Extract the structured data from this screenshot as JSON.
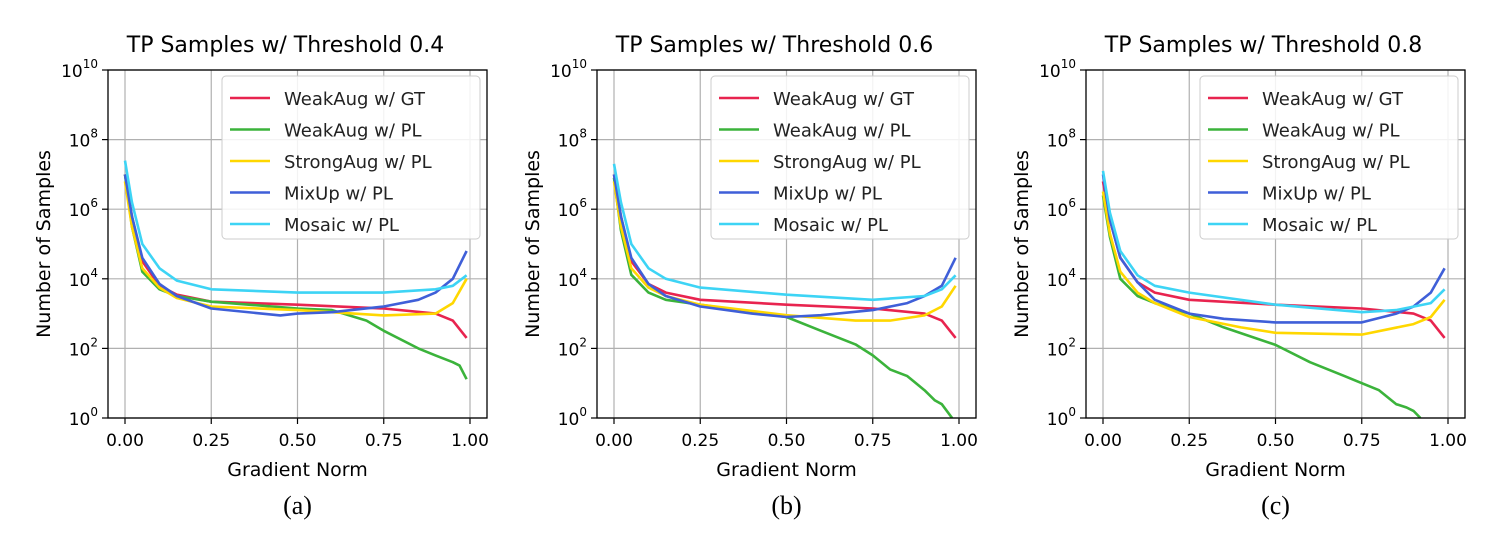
{
  "chart_data": [
    {
      "type": "line",
      "caption": "(a)",
      "title": "TP Samples w/ Threshold 0.4",
      "xlabel": "Gradient Norm",
      "ylabel": "Number of Samples",
      "xlim": [
        0,
        1
      ],
      "ylim": [
        1,
        10000000000.0
      ],
      "yscale": "log",
      "xticks": [
        "0.00",
        "0.25",
        "0.50",
        "0.75",
        "1.00"
      ],
      "yticks_exp": [
        "0",
        "2",
        "4",
        "6",
        "8",
        "10"
      ],
      "grid": true,
      "legend_placement": "top-right",
      "series": [
        {
          "name": "WeakAug w/ GT",
          "color": "#e8244f",
          "x": [
            0,
            0.02,
            0.05,
            0.1,
            0.15,
            0.25,
            0.5,
            0.75,
            0.9,
            0.95,
            0.99
          ],
          "y": [
            10000000.0,
            630000.0,
            32000.0,
            6300.0,
            3500.0,
            2200.0,
            1800.0,
            1400.0,
            1000.0,
            630.0,
            200.0
          ]
        },
        {
          "name": "WeakAug w/ PL",
          "color": "#3bb33b",
          "x": [
            0,
            0.02,
            0.05,
            0.1,
            0.15,
            0.25,
            0.5,
            0.6,
            0.7,
            0.75,
            0.85,
            0.9,
            0.95,
            0.97,
            0.99
          ],
          "y": [
            10000000.0,
            320000.0,
            16000.0,
            5000.0,
            3200.0,
            2200.0,
            1400.0,
            1260.0,
            630.0,
            320.0,
            100.0,
            63.0,
            40.0,
            32.0,
            13.0
          ]
        },
        {
          "name": "StrongAug w/ PL",
          "color": "#ffd700",
          "x": [
            0,
            0.02,
            0.05,
            0.1,
            0.15,
            0.25,
            0.5,
            0.75,
            0.9,
            0.95,
            0.99
          ],
          "y": [
            6300000.0,
            320000.0,
            20000.0,
            5600.0,
            2800.0,
            1600.0,
            1260.0,
            890.0,
            1000.0,
            2000.0,
            10000.0
          ]
        },
        {
          "name": "MixUp w/ PL",
          "color": "#3f5fd8",
          "x": [
            0,
            0.02,
            0.05,
            0.1,
            0.15,
            0.25,
            0.45,
            0.5,
            0.6,
            0.75,
            0.85,
            0.9,
            0.95,
            0.99
          ],
          "y": [
            10000000.0,
            630000.0,
            40000.0,
            7100.0,
            3200.0,
            1400.0,
            890.0,
            1000.0,
            1100.0,
            1600.0,
            2500.0,
            4000.0,
            10000.0,
            63000.0
          ]
        },
        {
          "name": "Mosaic w/ PL",
          "color": "#3dd4f5",
          "x": [
            0,
            0.02,
            0.05,
            0.1,
            0.15,
            0.25,
            0.5,
            0.75,
            0.9,
            0.95,
            0.99
          ],
          "y": [
            25000000.0,
            1600000.0,
            100000.0,
            20000.0,
            8900.0,
            5000.0,
            4000.0,
            4000.0,
            5000.0,
            6300.0,
            12600.0
          ]
        }
      ]
    },
    {
      "type": "line",
      "caption": "(b)",
      "title": "TP Samples w/ Threshold 0.6",
      "xlabel": "Gradient Norm",
      "ylabel": "Number of Samples",
      "xlim": [
        0,
        1
      ],
      "ylim": [
        1,
        10000000000.0
      ],
      "yscale": "log",
      "xticks": [
        "0.00",
        "0.25",
        "0.50",
        "0.75",
        "1.00"
      ],
      "yticks_exp": [
        "0",
        "2",
        "4",
        "6",
        "8",
        "10"
      ],
      "grid": true,
      "legend_placement": "top-right",
      "series": [
        {
          "name": "WeakAug w/ GT",
          "color": "#e8244f",
          "x": [
            0,
            0.02,
            0.05,
            0.1,
            0.15,
            0.25,
            0.5,
            0.75,
            0.9,
            0.95,
            0.99
          ],
          "y": [
            10000000.0,
            630000.0,
            32000.0,
            7100.0,
            4000.0,
            2500.0,
            1800.0,
            1400.0,
            1000.0,
            630.0,
            200.0
          ]
        },
        {
          "name": "WeakAug w/ PL",
          "color": "#3bb33b",
          "x": [
            0,
            0.02,
            0.05,
            0.1,
            0.15,
            0.25,
            0.4,
            0.5,
            0.6,
            0.7,
            0.75,
            0.8,
            0.85,
            0.9,
            0.93,
            0.95,
            0.98
          ],
          "y": [
            8000000.0,
            250000.0,
            13000.0,
            4000.0,
            2500.0,
            1800.0,
            1100.0,
            800.0,
            320.0,
            130.0,
            63.0,
            25.0,
            16.0,
            6.3,
            3.2,
            2.5,
            1
          ]
        },
        {
          "name": "StrongAug w/ PL",
          "color": "#ffd700",
          "x": [
            0,
            0.02,
            0.05,
            0.1,
            0.15,
            0.25,
            0.5,
            0.7,
            0.8,
            0.9,
            0.95,
            0.99
          ],
          "y": [
            6300000.0,
            320000.0,
            20000.0,
            5600.0,
            3200.0,
            1800.0,
            900.0,
            630.0,
            630.0,
            890.0,
            1600.0,
            6300.0
          ]
        },
        {
          "name": "MixUp w/ PL",
          "color": "#3f5fd8",
          "x": [
            0,
            0.02,
            0.05,
            0.1,
            0.15,
            0.25,
            0.4,
            0.5,
            0.6,
            0.75,
            0.85,
            0.9,
            0.95,
            0.99
          ],
          "y": [
            10000000.0,
            630000.0,
            40000.0,
            7100.0,
            3200.0,
            1600.0,
            1000.0,
            800.0,
            900.0,
            1260.0,
            2000.0,
            3200.0,
            6300.0,
            40000.0
          ]
        },
        {
          "name": "Mosaic w/ PL",
          "color": "#3dd4f5",
          "x": [
            0,
            0.02,
            0.05,
            0.1,
            0.15,
            0.25,
            0.5,
            0.75,
            0.9,
            0.95,
            0.99
          ],
          "y": [
            20000000.0,
            1600000.0,
            100000.0,
            20000.0,
            10000.0,
            5600.0,
            3500.0,
            2500.0,
            3200.0,
            5000.0,
            12600.0
          ]
        }
      ]
    },
    {
      "type": "line",
      "caption": "(c)",
      "title": "TP Samples w/ Threshold 0.8",
      "xlabel": "Gradient Norm",
      "ylabel": "Number of Samples",
      "xlim": [
        0,
        1
      ],
      "ylim": [
        1,
        10000000000.0
      ],
      "yscale": "log",
      "xticks": [
        "0.00",
        "0.25",
        "0.50",
        "0.75",
        "1.00"
      ],
      "yticks_exp": [
        "0",
        "2",
        "4",
        "6",
        "8",
        "10"
      ],
      "grid": true,
      "legend_placement": "top-right",
      "series": [
        {
          "name": "WeakAug w/ GT",
          "color": "#e8244f",
          "x": [
            0,
            0.02,
            0.05,
            0.1,
            0.15,
            0.25,
            0.5,
            0.75,
            0.9,
            0.95,
            0.99
          ],
          "y": [
            6300000.0,
            500000.0,
            40000.0,
            8000.0,
            4000.0,
            2500.0,
            1800.0,
            1400.0,
            1000.0,
            630.0,
            200.0
          ]
        },
        {
          "name": "WeakAug w/ PL",
          "color": "#3bb33b",
          "x": [
            0,
            0.02,
            0.05,
            0.1,
            0.15,
            0.25,
            0.35,
            0.5,
            0.6,
            0.7,
            0.8,
            0.85,
            0.88,
            0.9,
            0.92
          ],
          "y": [
            2500000.0,
            160000.0,
            10000.0,
            3200.0,
            2000.0,
            1000.0,
            400.0,
            126.0,
            40.0,
            16.0,
            6.3,
            2.5,
            2,
            1.6,
            1
          ]
        },
        {
          "name": "StrongAug w/ PL",
          "color": "#ffd700",
          "x": [
            0,
            0.02,
            0.05,
            0.1,
            0.15,
            0.25,
            0.4,
            0.5,
            0.75,
            0.9,
            0.95,
            0.99
          ],
          "y": [
            3200000.0,
            200000.0,
            16000.0,
            4000.0,
            2000.0,
            800.0,
            400.0,
            280.0,
            250.0,
            500.0,
            800.0,
            2500.0
          ]
        },
        {
          "name": "MixUp w/ PL",
          "color": "#3f5fd8",
          "x": [
            0,
            0.02,
            0.05,
            0.1,
            0.15,
            0.25,
            0.35,
            0.5,
            0.75,
            0.85,
            0.9,
            0.95,
            0.99
          ],
          "y": [
            10000000.0,
            500000.0,
            40000.0,
            8000.0,
            2500.0,
            1000.0,
            710.0,
            560.0,
            560.0,
            1000.0,
            1600.0,
            4000.0,
            20000.0
          ]
        },
        {
          "name": "Mosaic w/ PL",
          "color": "#3dd4f5",
          "x": [
            0,
            0.02,
            0.05,
            0.1,
            0.15,
            0.25,
            0.5,
            0.75,
            0.85,
            0.95,
            0.99
          ],
          "y": [
            12600000.0,
            800000.0,
            63000.0,
            12600.0,
            6300.0,
            4000.0,
            1800.0,
            1100.0,
            1260.0,
            2000.0,
            5000.0
          ]
        }
      ]
    }
  ]
}
